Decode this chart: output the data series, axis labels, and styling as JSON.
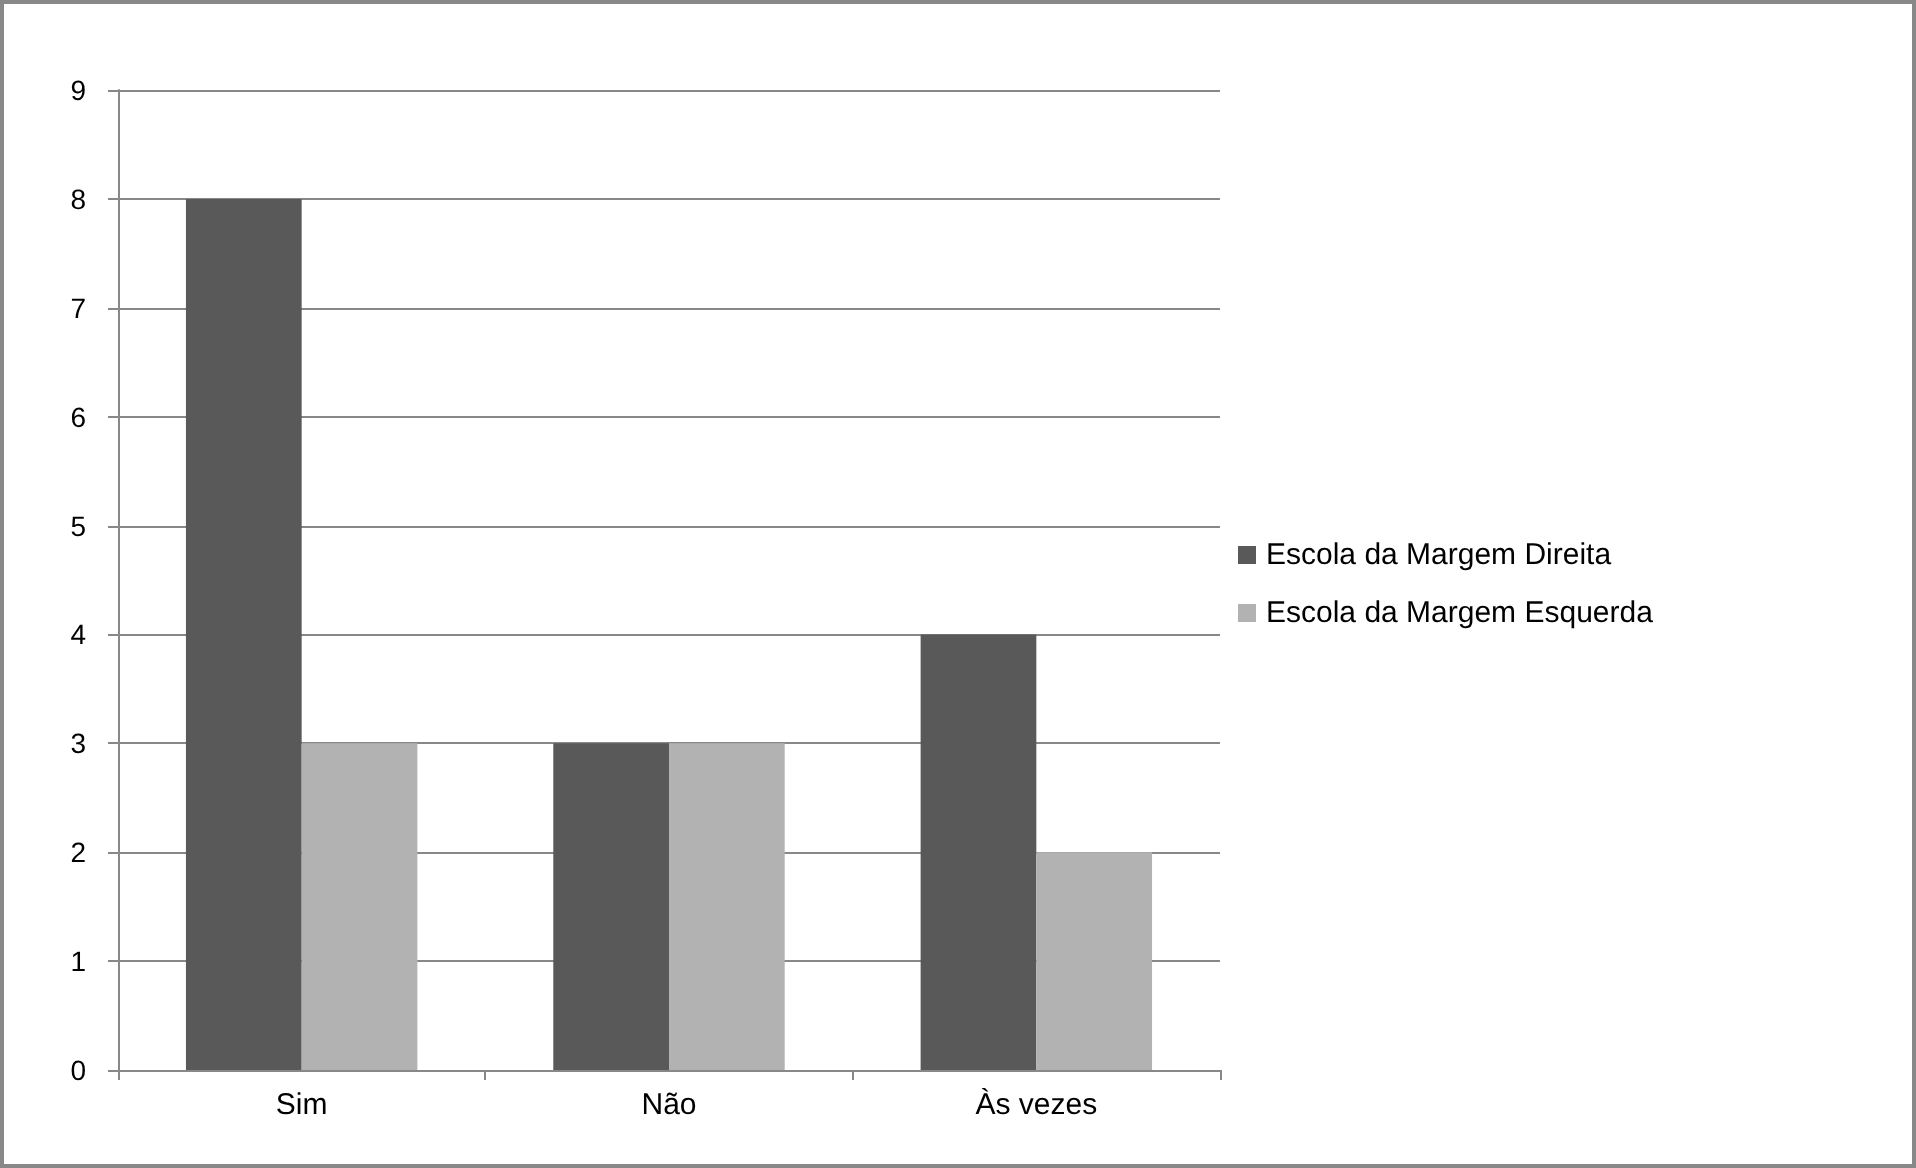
{
  "chart_data": {
    "type": "bar",
    "categories": [
      "Sim",
      "Não",
      "Às vezes"
    ],
    "series": [
      {
        "name": "Escola da Margem Direita",
        "color": "#595959",
        "values": [
          8,
          3,
          4
        ]
      },
      {
        "name": "Escola da Margem Esquerda",
        "color": "#b2b2b2",
        "values": [
          3,
          3,
          2
        ]
      }
    ],
    "ylim": [
      0,
      9
    ],
    "yticks": [
      0,
      1,
      2,
      3,
      4,
      5,
      6,
      7,
      8,
      9
    ],
    "grid": "y",
    "legend": "right"
  }
}
